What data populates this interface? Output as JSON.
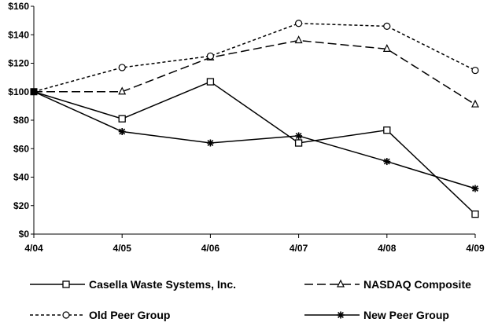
{
  "chart_data": {
    "type": "line",
    "categories": [
      "4/04",
      "4/05",
      "4/06",
      "4/07",
      "4/08",
      "4/09"
    ],
    "ylim": [
      0,
      160
    ],
    "yticks": [
      0,
      20,
      40,
      60,
      80,
      100,
      120,
      140,
      160
    ],
    "ytick_labels": [
      "$0",
      "$20",
      "$40",
      "$60",
      "$80",
      "$100",
      "$120",
      "$140",
      "$160"
    ],
    "grid": false,
    "legend_position": "bottom",
    "series": [
      {
        "name": "Casella Waste Systems, Inc.",
        "marker": "square",
        "dash": "solid",
        "values": [
          100,
          81,
          107,
          64,
          73,
          14
        ]
      },
      {
        "name": "NASDAQ Composite",
        "marker": "triangle",
        "dash": "long-dash",
        "values": [
          100,
          100,
          124,
          136,
          130,
          91
        ]
      },
      {
        "name": "Old Peer Group",
        "marker": "circle",
        "dash": "short-dash",
        "values": [
          100,
          117,
          125,
          148,
          146,
          115
        ]
      },
      {
        "name": "New Peer Group",
        "marker": "asterisk",
        "dash": "solid",
        "values": [
          100,
          72,
          64,
          69,
          51,
          32
        ]
      }
    ]
  }
}
